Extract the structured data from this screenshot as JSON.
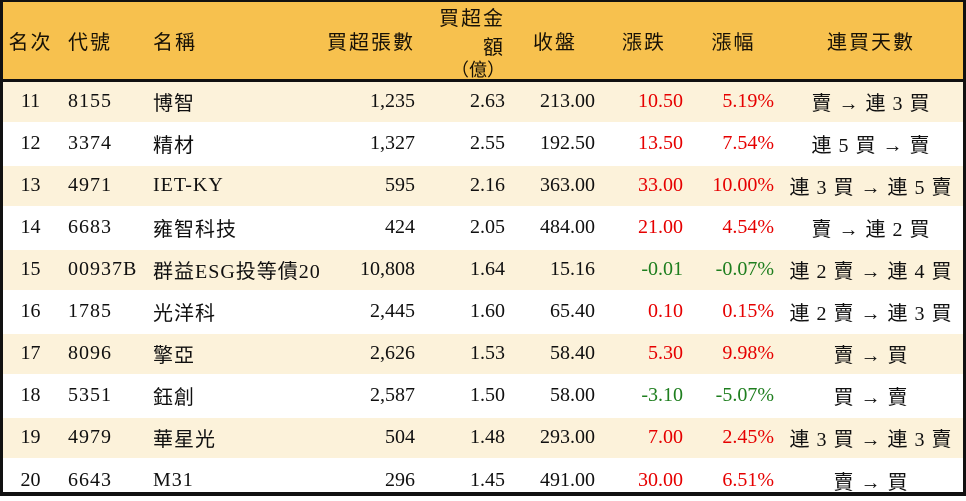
{
  "colors": {
    "up": "#e60000",
    "down": "#1e7e1e",
    "header_bg": "#f7c14e",
    "alt_row_bg": "#fcf2da",
    "line": "#111111"
  },
  "chart_data": {
    "type": "table",
    "columns": [
      {
        "key": "rank",
        "label": "名次",
        "sublabel": ""
      },
      {
        "key": "code",
        "label": "代號",
        "sublabel": ""
      },
      {
        "key": "name",
        "label": "名稱",
        "sublabel": ""
      },
      {
        "key": "volume",
        "label": "買超張數",
        "sublabel": ""
      },
      {
        "key": "amount",
        "label": "買超金額",
        "sublabel": "（億）"
      },
      {
        "key": "close",
        "label": "收盤",
        "sublabel": ""
      },
      {
        "key": "change",
        "label": "漲跌",
        "sublabel": ""
      },
      {
        "key": "pct",
        "label": "漲幅",
        "sublabel": ""
      },
      {
        "key": "streak",
        "label": "連買天數",
        "sublabel": ""
      }
    ],
    "rows": [
      {
        "rank": "11",
        "code": "8155",
        "name": "博智",
        "volume": "1,235",
        "amount": "2.63",
        "close": "213.00",
        "change": "10.50",
        "pct": "5.19%",
        "trend": "up",
        "streak": "賣 → 連 3 買"
      },
      {
        "rank": "12",
        "code": "3374",
        "name": "精材",
        "volume": "1,327",
        "amount": "2.55",
        "close": "192.50",
        "change": "13.50",
        "pct": "7.54%",
        "trend": "up",
        "streak": "連 5 買 → 賣"
      },
      {
        "rank": "13",
        "code": "4971",
        "name": "IET-KY",
        "volume": "595",
        "amount": "2.16",
        "close": "363.00",
        "change": "33.00",
        "pct": "10.00%",
        "trend": "up",
        "streak": "連 3 買 → 連 5 賣"
      },
      {
        "rank": "14",
        "code": "6683",
        "name": "雍智科技",
        "volume": "424",
        "amount": "2.05",
        "close": "484.00",
        "change": "21.00",
        "pct": "4.54%",
        "trend": "up",
        "streak": "賣 → 連 2 買"
      },
      {
        "rank": "15",
        "code": "00937B",
        "name": "群益ESG投等債20",
        "volume": "10,808",
        "amount": "1.64",
        "close": "15.16",
        "change": "-0.01",
        "pct": "-0.07%",
        "trend": "down",
        "streak": "連 2 賣 → 連 4 買"
      },
      {
        "rank": "16",
        "code": "1785",
        "name": "光洋科",
        "volume": "2,445",
        "amount": "1.60",
        "close": "65.40",
        "change": "0.10",
        "pct": "0.15%",
        "trend": "up",
        "streak": "連 2 賣 → 連 3 買"
      },
      {
        "rank": "17",
        "code": "8096",
        "name": "擎亞",
        "volume": "2,626",
        "amount": "1.53",
        "close": "58.40",
        "change": "5.30",
        "pct": "9.98%",
        "trend": "up",
        "streak": "賣 → 買"
      },
      {
        "rank": "18",
        "code": "5351",
        "name": "鈺創",
        "volume": "2,587",
        "amount": "1.50",
        "close": "58.00",
        "change": "-3.10",
        "pct": "-5.07%",
        "trend": "down",
        "streak": "買 → 賣"
      },
      {
        "rank": "19",
        "code": "4979",
        "name": "華星光",
        "volume": "504",
        "amount": "1.48",
        "close": "293.00",
        "change": "7.00",
        "pct": "2.45%",
        "trend": "up",
        "streak": "連 3 買 → 連 3 賣"
      },
      {
        "rank": "20",
        "code": "6643",
        "name": "M31",
        "volume": "296",
        "amount": "1.45",
        "close": "491.00",
        "change": "30.00",
        "pct": "6.51%",
        "trend": "up",
        "streak": "賣 → 買"
      }
    ]
  }
}
